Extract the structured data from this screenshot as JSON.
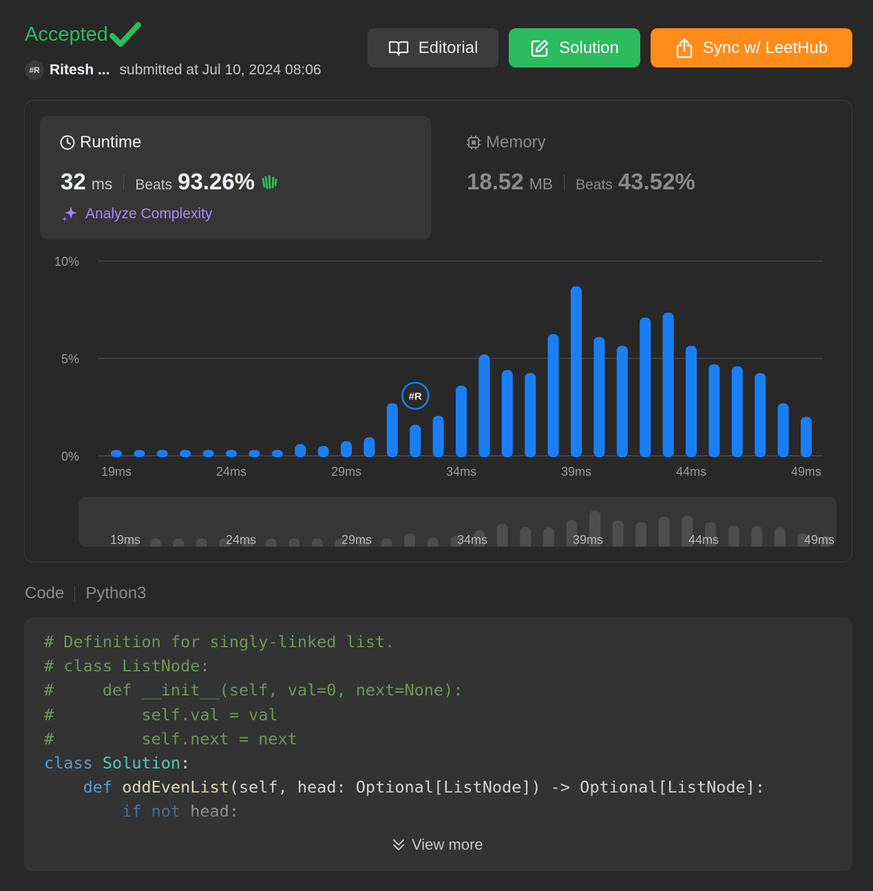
{
  "header": {
    "status": "Accepted",
    "author_avatar": "#R",
    "author": "Ritesh ...",
    "submitted": "submitted at Jul 10, 2024 08:06",
    "buttons": {
      "editorial": "Editorial",
      "solution": "Solution",
      "sync": "Sync w/ LeetHub"
    }
  },
  "runtime": {
    "title": "Runtime",
    "value": "32",
    "unit": "ms",
    "beats_label": "Beats",
    "beats": "93.26%",
    "analyze": "Analyze Complexity"
  },
  "memory": {
    "title": "Memory",
    "value": "18.52",
    "unit": "MB",
    "beats_label": "Beats",
    "beats": "43.52%"
  },
  "colors": {
    "accepted": "#2cbb5d",
    "bar": "#1a7ff5",
    "sync": "#ff8c1a",
    "analyze": "#a78bfa"
  },
  "icons": {
    "check": "check-icon",
    "editorial": "book-icon",
    "solution": "edit-icon",
    "sync": "share-icon",
    "runtime": "clock-icon",
    "memory": "chip-icon",
    "analyze": "sparkle-icon",
    "view_more": "chevron-down-icon"
  },
  "chart_data": {
    "type": "bar",
    "categories": [
      "19ms",
      "20ms",
      "21ms",
      "22ms",
      "23ms",
      "24ms",
      "25ms",
      "26ms",
      "27ms",
      "28ms",
      "29ms",
      "30ms",
      "31ms",
      "32ms",
      "33ms",
      "34ms",
      "35ms",
      "36ms",
      "37ms",
      "38ms",
      "39ms",
      "40ms",
      "41ms",
      "42ms",
      "43ms",
      "44ms",
      "45ms",
      "46ms",
      "47ms",
      "48ms",
      "49ms"
    ],
    "values": [
      0.3,
      0.3,
      0.3,
      0.3,
      0.3,
      0.3,
      0.3,
      0.3,
      0.6,
      0.5,
      0.75,
      0.95,
      2.7,
      1.6,
      2.05,
      3.6,
      5.2,
      4.4,
      4.25,
      6.25,
      8.7,
      6.1,
      5.65,
      7.1,
      7.35,
      5.65,
      4.7,
      4.6,
      4.25,
      2.7,
      2.0
    ],
    "yticks": [
      "10%",
      "5%",
      "0%"
    ],
    "ytick_values": [
      10,
      5,
      0
    ],
    "xticks": [
      "19ms",
      "24ms",
      "29ms",
      "34ms",
      "39ms",
      "44ms",
      "49ms"
    ],
    "ylim": [
      0,
      10
    ],
    "grid": true,
    "marker_category": "32ms",
    "marker_label": "#R"
  },
  "code": {
    "label": "Code",
    "language": "Python3",
    "view_more": "View more"
  }
}
